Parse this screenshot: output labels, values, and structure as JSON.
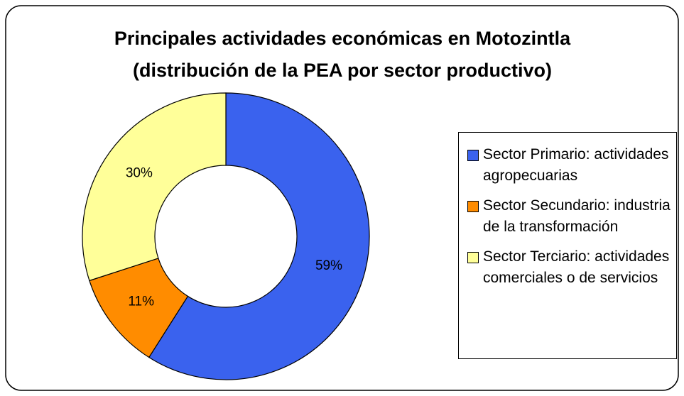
{
  "chart_data": {
    "type": "donut",
    "title": "Principales actividades económicas en Motozintla",
    "subtitle": "(distribución de la PEA por sector productivo)",
    "categories": [
      "Sector Primario: actividades agropecuarias",
      "Sector Secundario: industria de la transformación",
      "Sector Terciario: actividades comerciales o de servicios"
    ],
    "values": [
      59,
      11,
      30
    ],
    "value_labels": [
      "59%",
      "11%",
      "30%"
    ],
    "colors": [
      "#3a62ee",
      "#ff8c00",
      "#ffff99"
    ],
    "legend": "right"
  }
}
